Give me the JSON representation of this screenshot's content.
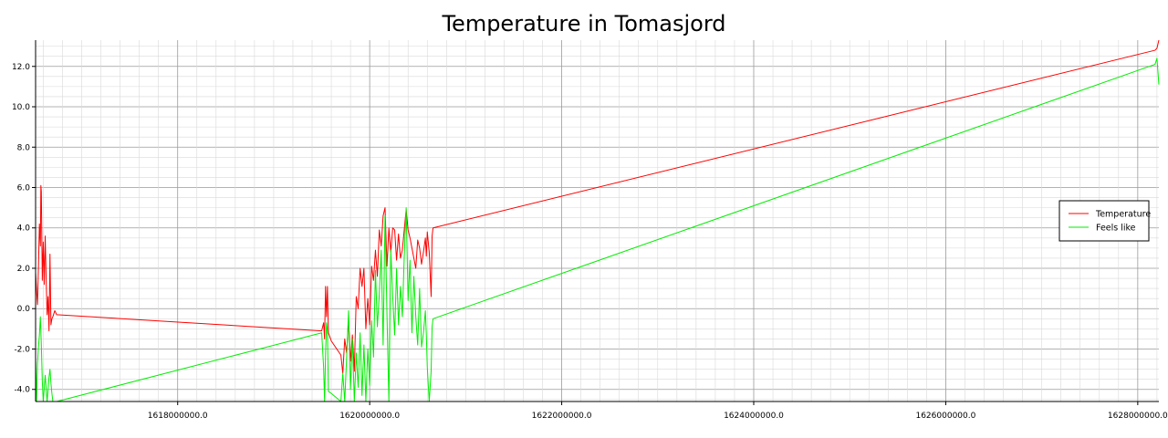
{
  "chart_data": {
    "type": "line",
    "title": "Temperature in Tomasjord",
    "xlabel": "",
    "ylabel": "",
    "xlim": [
      1616520000,
      1628220000
    ],
    "ylim": [
      -4.6,
      13.3
    ],
    "x_ticks": [
      1618000000,
      1620000000,
      1622000000,
      1624000000,
      1626000000,
      1628000000
    ],
    "x_tick_labels": [
      "1618000000.0",
      "1620000000.0",
      "1622000000.0",
      "1624000000.0",
      "1626000000.0",
      "1628000000.0"
    ],
    "y_ticks": [
      -4,
      -2,
      0,
      2,
      4,
      6,
      8,
      10,
      12
    ],
    "y_tick_labels": [
      "-4.0",
      "-2.0",
      "0.0",
      "2.0",
      "4.0",
      "6.0",
      "8.0",
      "10.0",
      "12.0"
    ],
    "grid": true,
    "legend_position": "right",
    "series": [
      {
        "name": "Temperature",
        "color": "#ff0000",
        "points": [
          [
            1616520000,
            1.8
          ],
          [
            1616530000,
            0.9
          ],
          [
            1616540000,
            0.2
          ],
          [
            1616550000,
            2.1
          ],
          [
            1616560000,
            4.2
          ],
          [
            1616570000,
            3.1
          ],
          [
            1616575000,
            6.1
          ],
          [
            1616580000,
            5.8
          ],
          [
            1616590000,
            1.4
          ],
          [
            1616600000,
            3.3
          ],
          [
            1616610000,
            1.2
          ],
          [
            1616620000,
            3.6
          ],
          [
            1616630000,
            1.5
          ],
          [
            1616640000,
            -0.3
          ],
          [
            1616650000,
            0.6
          ],
          [
            1616660000,
            -1.1
          ],
          [
            1616670000,
            2.7
          ],
          [
            1616680000,
            -0.8
          ],
          [
            1616690000,
            -0.5
          ],
          [
            1616700000,
            -0.4
          ],
          [
            1616720000,
            -0.1
          ],
          [
            1616740000,
            -0.3
          ],
          [
            1619500000,
            -1.1
          ],
          [
            1619520000,
            -0.7
          ],
          [
            1619530000,
            -1.5
          ],
          [
            1619540000,
            1.1
          ],
          [
            1619550000,
            -0.4
          ],
          [
            1619560000,
            1.1
          ],
          [
            1619570000,
            -1.2
          ],
          [
            1619600000,
            -1.6
          ],
          [
            1619700000,
            -2.3
          ],
          [
            1619720000,
            -3.2
          ],
          [
            1619740000,
            -1.5
          ],
          [
            1619760000,
            -2.2
          ],
          [
            1619780000,
            -0.6
          ],
          [
            1619800000,
            -2.6
          ],
          [
            1619820000,
            -1.3
          ],
          [
            1619840000,
            -3.1
          ],
          [
            1619860000,
            0.6
          ],
          [
            1619880000,
            0.0
          ],
          [
            1619900000,
            2.0
          ],
          [
            1619920000,
            1.1
          ],
          [
            1619940000,
            2.0
          ],
          [
            1619960000,
            -1.0
          ],
          [
            1619980000,
            0.5
          ],
          [
            1620000000,
            -0.8
          ],
          [
            1620020000,
            2.1
          ],
          [
            1620040000,
            1.4
          ],
          [
            1620060000,
            2.9
          ],
          [
            1620080000,
            1.6
          ],
          [
            1620100000,
            3.9
          ],
          [
            1620120000,
            3.1
          ],
          [
            1620140000,
            4.6
          ],
          [
            1620160000,
            5.0
          ],
          [
            1620180000,
            2.1
          ],
          [
            1620200000,
            4.0
          ],
          [
            1620220000,
            2.8
          ],
          [
            1620240000,
            4.0
          ],
          [
            1620260000,
            3.9
          ],
          [
            1620280000,
            2.4
          ],
          [
            1620300000,
            3.7
          ],
          [
            1620320000,
            2.5
          ],
          [
            1620340000,
            2.9
          ],
          [
            1620360000,
            3.9
          ],
          [
            1620380000,
            4.9
          ],
          [
            1620400000,
            3.9
          ],
          [
            1620420000,
            3.5
          ],
          [
            1620440000,
            3.0
          ],
          [
            1620460000,
            2.5
          ],
          [
            1620480000,
            2.0
          ],
          [
            1620500000,
            3.4
          ],
          [
            1620520000,
            3.0
          ],
          [
            1620540000,
            2.2
          ],
          [
            1620560000,
            2.8
          ],
          [
            1620580000,
            3.5
          ],
          [
            1620590000,
            2.6
          ],
          [
            1620600000,
            3.8
          ],
          [
            1620620000,
            2.8
          ],
          [
            1620640000,
            0.6
          ],
          [
            1620650000,
            3.6
          ],
          [
            1620660000,
            4.0
          ],
          [
            1628180000,
            12.8
          ],
          [
            1628200000,
            12.9
          ],
          [
            1628220000,
            13.3
          ]
        ]
      },
      {
        "name": "Feels like",
        "color": "#00ee00",
        "points": [
          [
            1616520000,
            -2.5
          ],
          [
            1616530000,
            -4.6
          ],
          [
            1616540000,
            -2.7
          ],
          [
            1616550000,
            -1.9
          ],
          [
            1616560000,
            -1.3
          ],
          [
            1616570000,
            -0.4
          ],
          [
            1616580000,
            -1.8
          ],
          [
            1616590000,
            -3.6
          ],
          [
            1616600000,
            -4.6
          ],
          [
            1616620000,
            -3.3
          ],
          [
            1616640000,
            -4.6
          ],
          [
            1616660000,
            -3.4
          ],
          [
            1616670000,
            -3.0
          ],
          [
            1616680000,
            -3.7
          ],
          [
            1616690000,
            -4.2
          ],
          [
            1616700000,
            -4.6
          ],
          [
            1616740000,
            -4.6
          ],
          [
            1619500000,
            -1.2
          ],
          [
            1619520000,
            -2.9
          ],
          [
            1619530000,
            -4.6
          ],
          [
            1619540000,
            -2.3
          ],
          [
            1619550000,
            -0.7
          ],
          [
            1619560000,
            -1.1
          ],
          [
            1619570000,
            -4.1
          ],
          [
            1619600000,
            -4.2
          ],
          [
            1619700000,
            -4.6
          ],
          [
            1619720000,
            -3.2
          ],
          [
            1619740000,
            -4.6
          ],
          [
            1619760000,
            -2.4
          ],
          [
            1619780000,
            -0.1
          ],
          [
            1619800000,
            -4.0
          ],
          [
            1619820000,
            -1.5
          ],
          [
            1619840000,
            -4.6
          ],
          [
            1619860000,
            -2.2
          ],
          [
            1619880000,
            -3.9
          ],
          [
            1619900000,
            -1.2
          ],
          [
            1619920000,
            -4.3
          ],
          [
            1619940000,
            -1.8
          ],
          [
            1619960000,
            -4.6
          ],
          [
            1619980000,
            -2.0
          ],
          [
            1620000000,
            -3.8
          ],
          [
            1620020000,
            -0.6
          ],
          [
            1620040000,
            -2.4
          ],
          [
            1620060000,
            1.9
          ],
          [
            1620080000,
            -0.9
          ],
          [
            1620100000,
            0.7
          ],
          [
            1620120000,
            2.9
          ],
          [
            1620140000,
            -1.8
          ],
          [
            1620160000,
            4.6
          ],
          [
            1620180000,
            -0.3
          ],
          [
            1620200000,
            -4.6
          ],
          [
            1620220000,
            2.9
          ],
          [
            1620240000,
            0.6
          ],
          [
            1620260000,
            -1.3
          ],
          [
            1620280000,
            2.0
          ],
          [
            1620300000,
            -0.8
          ],
          [
            1620320000,
            1.1
          ],
          [
            1620340000,
            -0.4
          ],
          [
            1620360000,
            2.6
          ],
          [
            1620380000,
            5.0
          ],
          [
            1620400000,
            0.4
          ],
          [
            1620420000,
            2.4
          ],
          [
            1620440000,
            -1.2
          ],
          [
            1620460000,
            1.6
          ],
          [
            1620480000,
            -0.4
          ],
          [
            1620500000,
            -1.8
          ],
          [
            1620520000,
            1.0
          ],
          [
            1620540000,
            -1.9
          ],
          [
            1620560000,
            -1.2
          ],
          [
            1620580000,
            -0.1
          ],
          [
            1620590000,
            -1.3
          ],
          [
            1620600000,
            -2.9
          ],
          [
            1620620000,
            -4.6
          ],
          [
            1620640000,
            -3.1
          ],
          [
            1620650000,
            -0.9
          ],
          [
            1620660000,
            -0.5
          ],
          [
            1628180000,
            12.1
          ],
          [
            1628200000,
            12.4
          ],
          [
            1628220000,
            11.1
          ]
        ]
      }
    ]
  }
}
